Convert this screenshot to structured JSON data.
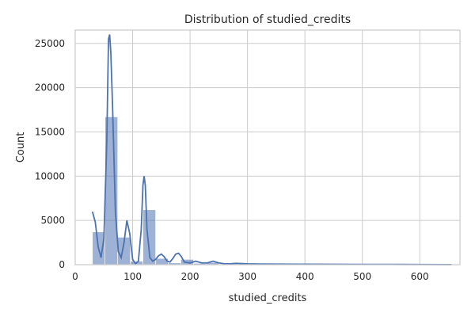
{
  "chart_data": {
    "type": "bar",
    "title": "Distribution of studied_credits",
    "xlabel": "studied_credits",
    "ylabel": "Count",
    "xlim": [
      0,
      670
    ],
    "ylim": [
      0,
      26500
    ],
    "xticks": [
      0,
      100,
      200,
      300,
      400,
      500,
      600
    ],
    "yticks": [
      0,
      5000,
      10000,
      15000,
      20000,
      25000
    ],
    "grid": true,
    "bars": [
      {
        "x0": 30,
        "x1": 52,
        "count": 3700
      },
      {
        "x0": 52,
        "x1": 74,
        "count": 16700
      },
      {
        "x0": 74,
        "x1": 96,
        "count": 3100
      },
      {
        "x0": 96,
        "x1": 118,
        "count": 400
      },
      {
        "x0": 118,
        "x1": 140,
        "count": 6200
      },
      {
        "x0": 140,
        "x1": 162,
        "count": 700
      },
      {
        "x0": 162,
        "x1": 184,
        "count": 200
      },
      {
        "x0": 184,
        "x1": 206,
        "count": 600
      },
      {
        "x0": 206,
        "x1": 228,
        "count": 150
      },
      {
        "x0": 228,
        "x1": 250,
        "count": 250
      },
      {
        "x0": 250,
        "x1": 272,
        "count": 60
      },
      {
        "x0": 272,
        "x1": 294,
        "count": 80
      },
      {
        "x0": 294,
        "x1": 316,
        "count": 50
      },
      {
        "x0": 316,
        "x1": 338,
        "count": 40
      },
      {
        "x0": 338,
        "x1": 360,
        "count": 30
      },
      {
        "x0": 360,
        "x1": 382,
        "count": 30
      },
      {
        "x0": 382,
        "x1": 404,
        "count": 25
      },
      {
        "x0": 404,
        "x1": 426,
        "count": 20
      },
      {
        "x0": 426,
        "x1": 448,
        "count": 20
      },
      {
        "x0": 448,
        "x1": 470,
        "count": 15
      },
      {
        "x0": 470,
        "x1": 492,
        "count": 15
      },
      {
        "x0": 492,
        "x1": 514,
        "count": 10
      },
      {
        "x0": 514,
        "x1": 536,
        "count": 10
      },
      {
        "x0": 536,
        "x1": 558,
        "count": 10
      },
      {
        "x0": 558,
        "x1": 580,
        "count": 10
      },
      {
        "x0": 580,
        "x1": 602,
        "count": 10
      },
      {
        "x0": 602,
        "x1": 624,
        "count": 8
      },
      {
        "x0": 624,
        "x1": 646,
        "count": 5
      },
      {
        "x0": 646,
        "x1": 655,
        "count": 5
      }
    ],
    "kde": {
      "name": "",
      "x": [
        30,
        35,
        40,
        45,
        50,
        55,
        58,
        60,
        62,
        65,
        70,
        75,
        80,
        85,
        90,
        95,
        100,
        105,
        110,
        115,
        118,
        120,
        122,
        125,
        130,
        135,
        140,
        145,
        150,
        155,
        160,
        165,
        170,
        175,
        180,
        185,
        190,
        200,
        210,
        220,
        230,
        240,
        250,
        260,
        270,
        280,
        300,
        320,
        350,
        400,
        450,
        500,
        550,
        600,
        655
      ],
      "y": [
        6000,
        4800,
        2000,
        800,
        3000,
        14000,
        25500,
        26000,
        24000,
        18000,
        6000,
        1500,
        800,
        2500,
        5000,
        3500,
        600,
        100,
        400,
        4000,
        9000,
        10000,
        9000,
        4000,
        800,
        400,
        600,
        1000,
        1200,
        900,
        400,
        300,
        700,
        1200,
        1300,
        900,
        300,
        200,
        400,
        200,
        200,
        400,
        200,
        100,
        100,
        150,
        100,
        80,
        60,
        50,
        40,
        30,
        30,
        20,
        10
      ]
    }
  }
}
